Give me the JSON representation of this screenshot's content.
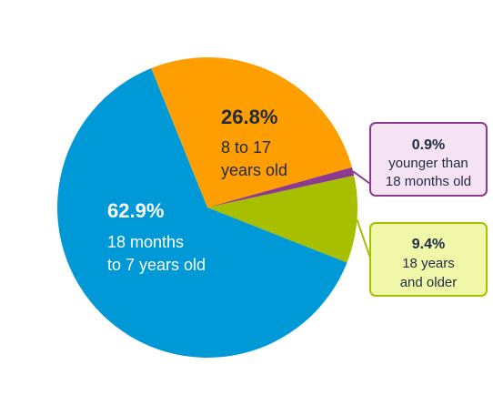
{
  "chart_data": {
    "type": "pie",
    "title": "",
    "slices": [
      {
        "label_lines": [
          "18 months",
          "to 7 years old"
        ],
        "value": 62.9,
        "value_label": "62.9%",
        "color": "#0099d8",
        "text_color": "#ffffff"
      },
      {
        "label_lines": [
          "8 to 17",
          "years old"
        ],
        "value": 26.8,
        "value_label": "26.8%",
        "color": "#ff9e00",
        "text_color": "#1f2a44"
      },
      {
        "label_lines": [
          "younger than",
          "18 months old"
        ],
        "value": 0.9,
        "value_label": "0.9%",
        "color": "#8b3a8f",
        "callout_fill": "#f5e3f3",
        "callout_border": "#8b3a8f"
      },
      {
        "label_lines": [
          "18 years",
          "and older"
        ],
        "value": 9.4,
        "value_label": "9.4%",
        "color": "#a8bf00",
        "callout_fill": "#f1f7a8",
        "callout_border": "#a8bf00"
      }
    ],
    "legend": "none"
  }
}
